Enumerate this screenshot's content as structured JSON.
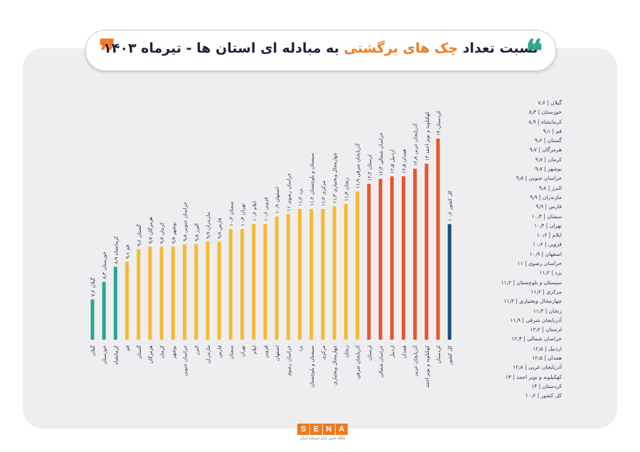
{
  "title": {
    "part1": "نسبت تعداد",
    "highlight": "چک های برگشتی",
    "part2": "به مبادله ای استان ها - تیرماه ۱۴۰۳",
    "quote_open": "❞",
    "quote_close": "❝"
  },
  "colors": {
    "teal": "#2ba590",
    "yellow": "#f8b92f",
    "red": "#e8552b",
    "navy": "#1f4d7a"
  },
  "chart_data": {
    "type": "bar",
    "categories": [
      "گیلان",
      "خوزستان",
      "کرمانشاه",
      "قم",
      "گستان",
      "هرمزگان",
      "کرمان",
      "بوشهر",
      "خراسان جنوبی",
      "البرز",
      "مازندران",
      "فارس",
      "سمنان",
      "تهران",
      "ایلام",
      "قزوین",
      "اصفهان",
      "خراسان رضوی",
      "یزد",
      "سیستان و بلوچستان",
      "مرکزی",
      "چهارمحال وبختیاری",
      "زنجان",
      "آذربایجان شرقی",
      "لرستان",
      "خراسان شمالی",
      "اردبیل",
      "همدان",
      "آذربایجان غربی",
      "کهکیلویه و بویر احمد",
      "کردستان",
      "کل کشور"
    ],
    "values": [
      7.6,
      8.3,
      8.9,
      9.1,
      9.6,
      9.7,
      9.7,
      9.7,
      9.8,
      9.8,
      9.9,
      9.9,
      10.4,
      10.4,
      10.6,
      10.6,
      10.9,
      11,
      11.2,
      11.2,
      11.2,
      11.3,
      11.4,
      11.9,
      12.2,
      12.4,
      12.5,
      12.5,
      12.8,
      13,
      14,
      10.6
    ],
    "value_labels": [
      "۷٫۶",
      "۸٫۳",
      "۸٫۹",
      "۹٫۱",
      "۹٫۶",
      "۹٫۷",
      "۹٫۷",
      "۹٫۷",
      "۹٫۸",
      "۹٫۸",
      "۹٫۹",
      "۹٫۹",
      "۱۰٫۴",
      "۱۰٫۴",
      "۱۰٫۶",
      "۱۰٫۶",
      "۱۰٫۹",
      "۱۱",
      "۱۱٫۲",
      "۱۱٫۲",
      "۱۱٫۲",
      "۱۱٫۳",
      "۱۱٫۴",
      "۱۱٫۹",
      "۱۲٫۲",
      "۱۲٫۴",
      "۱۲٫۵",
      "۱۲٫۵",
      "۱۲٫۸",
      "۱۳",
      "۱۴",
      "۱۰٫۶"
    ],
    "color_groups": [
      "teal",
      "teal",
      "teal",
      "yellow",
      "yellow",
      "yellow",
      "yellow",
      "yellow",
      "yellow",
      "yellow",
      "yellow",
      "yellow",
      "yellow",
      "yellow",
      "yellow",
      "yellow",
      "yellow",
      "yellow",
      "yellow",
      "yellow",
      "yellow",
      "yellow",
      "yellow",
      "yellow",
      "red",
      "red",
      "red",
      "red",
      "red",
      "red",
      "red",
      "navy"
    ],
    "legend_position": "right",
    "grid": false
  },
  "logo": {
    "letters": [
      "S",
      "E",
      "N",
      "A"
    ],
    "subtitle": "پایگاه خبری بازار سرمایه ایران"
  }
}
